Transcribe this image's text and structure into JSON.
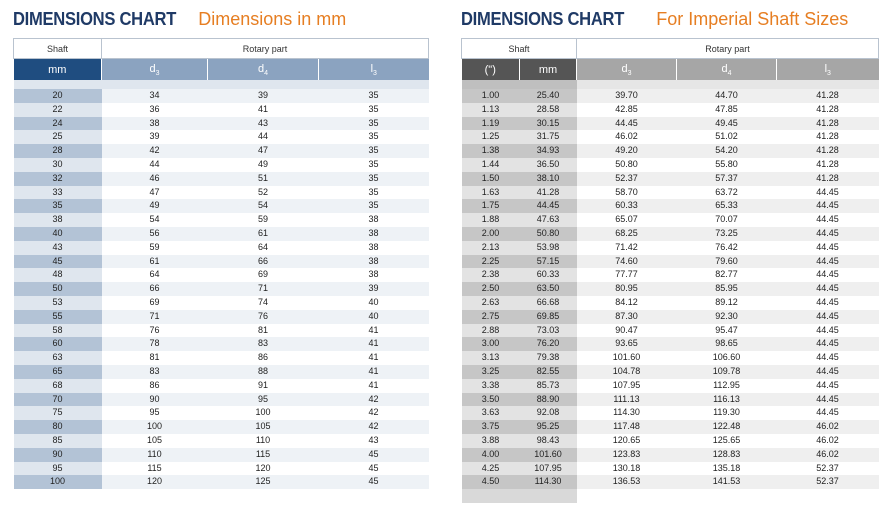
{
  "left": {
    "title": "DIMENSIONS CHART",
    "subtitle": "Dimensions in mm",
    "group_headers": {
      "shaft": "Shaft",
      "rotary": "Rotary part"
    },
    "col_headers": {
      "mm": "mm",
      "d3": "d",
      "d3_sub": "3",
      "d4": "d",
      "d4_sub": "4",
      "l3": "l",
      "l3_sub": "3"
    },
    "rows": [
      [
        "20",
        "34",
        "39",
        "35"
      ],
      [
        "22",
        "36",
        "41",
        "35"
      ],
      [
        "24",
        "38",
        "43",
        "35"
      ],
      [
        "25",
        "39",
        "44",
        "35"
      ],
      [
        "28",
        "42",
        "47",
        "35"
      ],
      [
        "30",
        "44",
        "49",
        "35"
      ],
      [
        "32",
        "46",
        "51",
        "35"
      ],
      [
        "33",
        "47",
        "52",
        "35"
      ],
      [
        "35",
        "49",
        "54",
        "35"
      ],
      [
        "38",
        "54",
        "59",
        "38"
      ],
      [
        "40",
        "56",
        "61",
        "38"
      ],
      [
        "43",
        "59",
        "64",
        "38"
      ],
      [
        "45",
        "61",
        "66",
        "38"
      ],
      [
        "48",
        "64",
        "69",
        "38"
      ],
      [
        "50",
        "66",
        "71",
        "39"
      ],
      [
        "53",
        "69",
        "74",
        "40"
      ],
      [
        "55",
        "71",
        "76",
        "40"
      ],
      [
        "58",
        "76",
        "81",
        "41"
      ],
      [
        "60",
        "78",
        "83",
        "41"
      ],
      [
        "63",
        "81",
        "86",
        "41"
      ],
      [
        "65",
        "83",
        "88",
        "41"
      ],
      [
        "68",
        "86",
        "91",
        "41"
      ],
      [
        "70",
        "90",
        "95",
        "42"
      ],
      [
        "75",
        "95",
        "100",
        "42"
      ],
      [
        "80",
        "100",
        "105",
        "42"
      ],
      [
        "85",
        "105",
        "110",
        "43"
      ],
      [
        "90",
        "110",
        "115",
        "45"
      ],
      [
        "95",
        "115",
        "120",
        "45"
      ],
      [
        "100",
        "120",
        "125",
        "45"
      ]
    ]
  },
  "right": {
    "title": "DIMENSIONS CHART",
    "subtitle": "For Imperial Shaft Sizes",
    "group_headers": {
      "shaft": "Shaft",
      "rotary": "Rotary part"
    },
    "col_headers": {
      "inch": "(\")",
      "mm": "mm",
      "d3": "d",
      "d3_sub": "3",
      "d4": "d",
      "d4_sub": "4",
      "l3": "l",
      "l3_sub": "3"
    },
    "rows": [
      [
        "1.00",
        "25.40",
        "39.70",
        "44.70",
        "41.28"
      ],
      [
        "1.13",
        "28.58",
        "42.85",
        "47.85",
        "41.28"
      ],
      [
        "1.19",
        "30.15",
        "44.45",
        "49.45",
        "41.28"
      ],
      [
        "1.25",
        "31.75",
        "46.02",
        "51.02",
        "41.28"
      ],
      [
        "1.38",
        "34.93",
        "49.20",
        "54.20",
        "41.28"
      ],
      [
        "1.44",
        "36.50",
        "50.80",
        "55.80",
        "41.28"
      ],
      [
        "1.50",
        "38.10",
        "52.37",
        "57.37",
        "41.28"
      ],
      [
        "1.63",
        "41.28",
        "58.70",
        "63.72",
        "44.45"
      ],
      [
        "1.75",
        "44.45",
        "60.33",
        "65.33",
        "44.45"
      ],
      [
        "1.88",
        "47.63",
        "65.07",
        "70.07",
        "44.45"
      ],
      [
        "2.00",
        "50.80",
        "68.25",
        "73.25",
        "44.45"
      ],
      [
        "2.13",
        "53.98",
        "71.42",
        "76.42",
        "44.45"
      ],
      [
        "2.25",
        "57.15",
        "74.60",
        "79.60",
        "44.45"
      ],
      [
        "2.38",
        "60.33",
        "77.77",
        "82.77",
        "44.45"
      ],
      [
        "2.50",
        "63.50",
        "80.95",
        "85.95",
        "44.45"
      ],
      [
        "2.63",
        "66.68",
        "84.12",
        "89.12",
        "44.45"
      ],
      [
        "2.75",
        "69.85",
        "87.30",
        "92.30",
        "44.45"
      ],
      [
        "2.88",
        "73.03",
        "90.47",
        "95.47",
        "44.45"
      ],
      [
        "3.00",
        "76.20",
        "93.65",
        "98.65",
        "44.45"
      ],
      [
        "3.13",
        "79.38",
        "101.60",
        "106.60",
        "44.45"
      ],
      [
        "3.25",
        "82.55",
        "104.78",
        "109.78",
        "44.45"
      ],
      [
        "3.38",
        "85.73",
        "107.95",
        "112.95",
        "44.45"
      ],
      [
        "3.50",
        "88.90",
        "111.13",
        "116.13",
        "44.45"
      ],
      [
        "3.63",
        "92.08",
        "114.30",
        "119.30",
        "44.45"
      ],
      [
        "3.75",
        "95.25",
        "117.48",
        "122.48",
        "46.02"
      ],
      [
        "3.88",
        "98.43",
        "120.65",
        "125.65",
        "46.02"
      ],
      [
        "4.00",
        "101.60",
        "123.83",
        "128.83",
        "46.02"
      ],
      [
        "4.25",
        "107.95",
        "130.18",
        "135.18",
        "52.37"
      ],
      [
        "4.50",
        "114.30",
        "136.53",
        "141.53",
        "52.37"
      ]
    ]
  }
}
